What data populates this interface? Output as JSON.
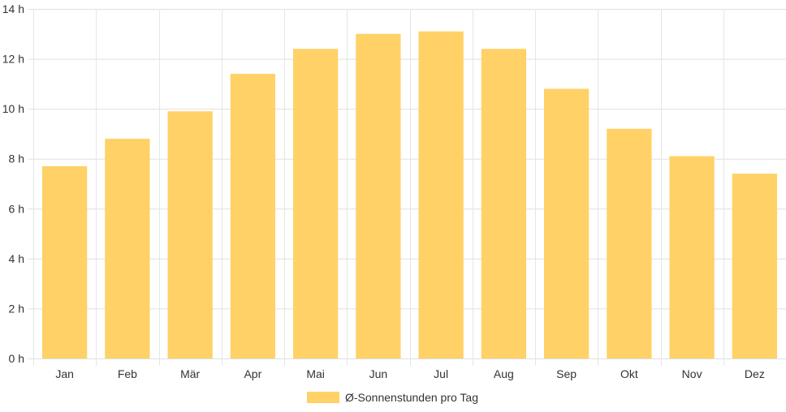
{
  "chart_data": {
    "type": "bar",
    "categories": [
      "Jan",
      "Feb",
      "Mär",
      "Apr",
      "Mai",
      "Jun",
      "Jul",
      "Aug",
      "Sep",
      "Okt",
      "Nov",
      "Dez"
    ],
    "series": [
      {
        "name": "Ø-Sonnenstunden pro Tag",
        "values": [
          7.7,
          8.8,
          9.9,
          11.4,
          12.4,
          13.0,
          13.1,
          12.4,
          10.8,
          9.2,
          8.1,
          7.4
        ],
        "color": "#ffd166"
      }
    ],
    "y_ticks": [
      "0 h",
      "2 h",
      "4 h",
      "6 h",
      "8 h",
      "10 h",
      "12 h",
      "14 h"
    ],
    "ylim": [
      0,
      14
    ],
    "grid": true,
    "legend_position": "bottom"
  }
}
